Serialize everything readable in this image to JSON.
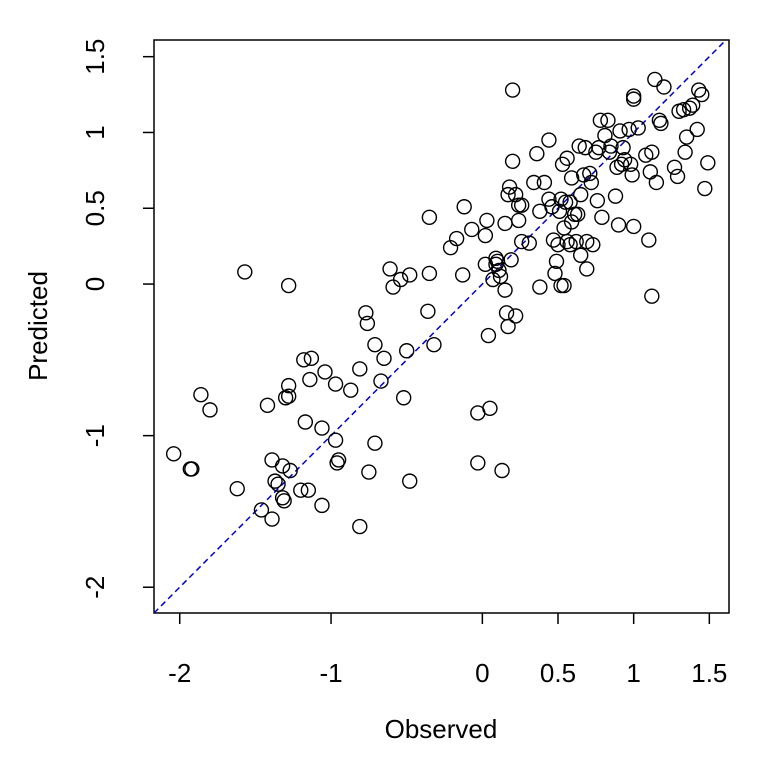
{
  "chart_data": {
    "type": "scatter",
    "x_label": "Observed",
    "y_label": "Predicted",
    "xlim": [
      -2.17,
      1.63
    ],
    "ylim": [
      -2.17,
      1.61
    ],
    "xticks": [
      -2.0,
      -1.0,
      0.0,
      0.5,
      1.0,
      1.5
    ],
    "yticks": [
      1.5,
      1.0,
      0.5,
      0.0,
      -1.0,
      -2.0
    ],
    "color": "#000000",
    "identity_line": true,
    "identity_line_color": "#0000cd",
    "x": [
      -2.04,
      -1.93,
      -1.92,
      -1.86,
      -1.8,
      -1.62,
      -1.57,
      -1.46,
      -1.42,
      -1.39,
      -1.39,
      -1.37,
      -1.35,
      -1.32,
      -1.32,
      -1.31,
      -1.3,
      -1.28,
      -1.28,
      -1.28,
      -1.27,
      -1.2,
      -1.18,
      -1.17,
      -1.15,
      -1.14,
      -1.13,
      -1.06,
      -1.06,
      -1.04,
      -0.97,
      -0.97,
      -0.96,
      -0.95,
      -0.87,
      -0.81,
      -0.81,
      -0.77,
      -0.76,
      -0.75,
      -0.71,
      -0.71,
      -0.67,
      -0.65,
      -0.61,
      -0.59,
      -0.54,
      -0.52,
      -0.48,
      -0.48,
      -0.5,
      -0.36,
      -0.35,
      -0.32,
      -0.35,
      -0.21,
      -0.17,
      -0.12,
      -0.13,
      -0.07,
      -0.03,
      0.02,
      0.02,
      0.03,
      0.05,
      -0.03,
      0.04,
      0.07,
      0.09,
      0.09,
      0.11,
      0.12,
      0.1,
      0.13,
      0.15,
      0.15,
      0.16,
      0.17,
      0.17,
      0.18,
      0.19,
      0.2,
      0.2,
      0.22,
      0.22,
      0.24,
      0.24,
      0.26,
      0.26,
      0.31,
      0.34,
      0.36,
      0.38,
      0.38,
      0.41,
      0.44,
      0.44,
      0.46,
      0.47,
      0.48,
      0.49,
      0.5,
      0.51,
      0.52,
      0.52,
      0.53,
      0.54,
      0.54,
      0.55,
      0.56,
      0.56,
      0.58,
      0.58,
      0.59,
      0.59,
      0.61,
      0.62,
      0.63,
      0.64,
      0.65,
      0.65,
      0.67,
      0.68,
      0.69,
      0.69,
      0.71,
      0.72,
      0.73,
      0.75,
      0.76,
      0.77,
      0.78,
      0.79,
      0.81,
      0.83,
      0.84,
      0.85,
      0.88,
      0.89,
      0.9,
      0.91,
      0.92,
      0.93,
      0.94,
      0.97,
      0.98,
      0.99,
      1.0,
      1.0,
      1.0,
      1.03,
      1.08,
      1.1,
      1.11,
      1.12,
      1.12,
      1.14,
      1.15,
      1.17,
      1.18,
      1.2,
      1.27,
      1.29,
      1.3,
      1.33,
      1.34,
      1.35,
      1.37,
      1.39,
      1.42,
      1.43,
      1.45,
      1.47,
      1.49
    ],
    "y": [
      -1.12,
      -1.22,
      -1.22,
      -0.73,
      -0.83,
      -1.35,
      0.08,
      -1.49,
      -0.8,
      -1.16,
      -1.55,
      -1.3,
      -1.32,
      -1.2,
      -1.41,
      -1.43,
      -0.75,
      -0.67,
      -0.74,
      -0.01,
      -1.23,
      -1.36,
      -0.5,
      -0.91,
      -1.36,
      -0.63,
      -0.49,
      -1.46,
      -0.95,
      -0.58,
      -1.03,
      -0.66,
      -1.18,
      -1.16,
      -0.7,
      -1.6,
      -0.56,
      -0.19,
      -0.26,
      -1.24,
      -1.05,
      -0.4,
      -0.64,
      -0.49,
      0.1,
      -0.02,
      0.03,
      -0.75,
      0.06,
      -1.3,
      -0.44,
      -0.18,
      0.07,
      -0.4,
      0.44,
      0.24,
      0.3,
      0.51,
      0.06,
      0.36,
      -0.85,
      0.13,
      0.32,
      0.42,
      -0.82,
      -1.18,
      -0.34,
      0.03,
      0.17,
      0.13,
      0.09,
      0.05,
      0.15,
      -1.23,
      -0.04,
      0.4,
      -0.19,
      0.59,
      -0.28,
      0.64,
      0.16,
      0.81,
      1.28,
      -0.21,
      0.59,
      0.52,
      0.42,
      0.28,
      0.52,
      0.27,
      0.67,
      0.86,
      -0.02,
      0.48,
      0.67,
      0.56,
      0.95,
      0.51,
      0.29,
      0.07,
      0.15,
      0.26,
      0.48,
      0.56,
      -0.01,
      0.79,
      -0.01,
      0.37,
      0.54,
      0.83,
      0.28,
      0.26,
      0.54,
      0.41,
      0.7,
      0.46,
      0.28,
      0.46,
      0.91,
      0.19,
      0.59,
      0.72,
      0.9,
      0.28,
      0.1,
      0.73,
      0.67,
      0.26,
      0.87,
      0.55,
      0.9,
      1.08,
      0.44,
      0.98,
      1.08,
      0.87,
      0.91,
      0.58,
      0.77,
      0.39,
      1.01,
      0.79,
      0.9,
      0.82,
      1.02,
      0.79,
      0.72,
      1.24,
      0.38,
      1.22,
      1.03,
      0.85,
      0.29,
      0.74,
      -0.08,
      0.87,
      1.35,
      0.67,
      1.08,
      1.06,
      1.3,
      0.77,
      0.71,
      1.14,
      1.15,
      0.87,
      0.97,
      1.16,
      1.18,
      1.02,
      1.28,
      1.25,
      0.63,
      0.8
    ]
  }
}
